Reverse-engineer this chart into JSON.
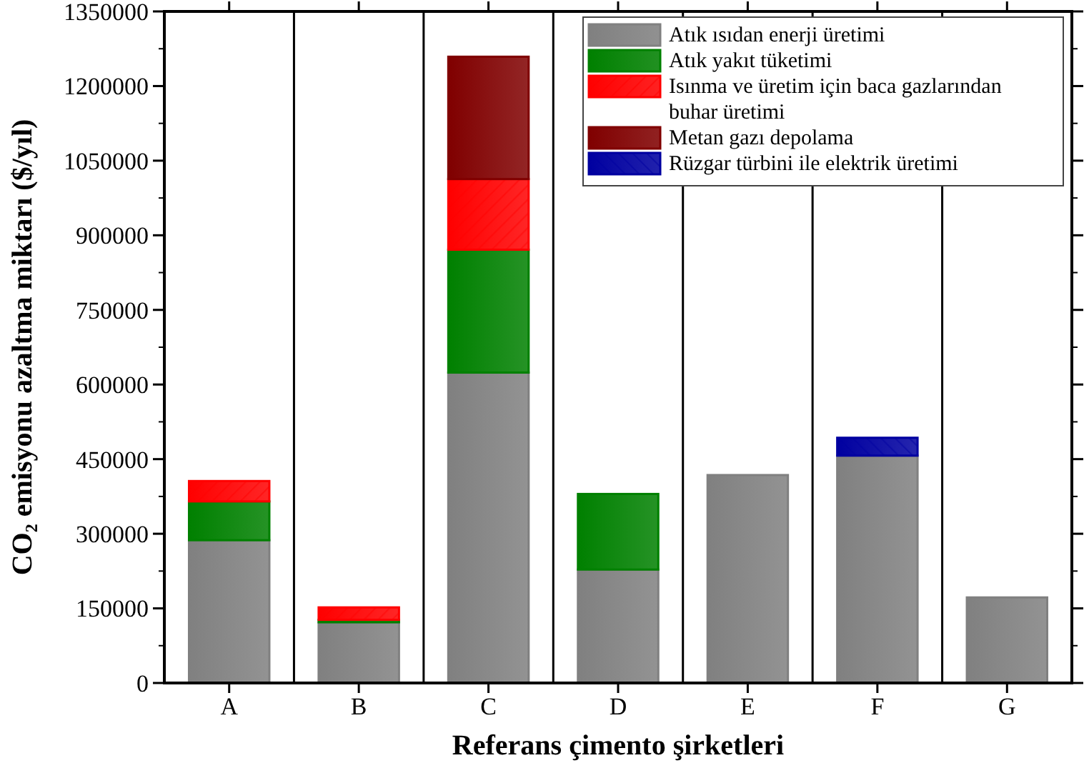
{
  "chart_data": {
    "type": "bar",
    "stacked": true,
    "xlabel": "Referans çimento şirketleri",
    "ylabel": "CO₂ emisyonu azaltma miktarı ($/yıl)",
    "categories": [
      "A",
      "B",
      "C",
      "D",
      "E",
      "F",
      "G"
    ],
    "series": [
      {
        "name": "Atık ısıdan enerji üretimi",
        "color": "#808080",
        "values": [
          287000,
          122000,
          624000,
          228000,
          418000,
          457000,
          172000
        ]
      },
      {
        "name": "Atık yakıt tüketimi",
        "color": "#008000",
        "values": [
          78000,
          5000,
          247000,
          152000,
          null,
          null,
          null
        ]
      },
      {
        "name": "Isınma ve üretim için baca gazlarından buhar üretimi",
        "color": "#ff0000",
        "values": [
          41000,
          25000,
          142000,
          null,
          null,
          null,
          null
        ]
      },
      {
        "name": "Metan gazı depolama",
        "color": "#800000",
        "values": [
          null,
          null,
          246000,
          null,
          null,
          null,
          null
        ]
      },
      {
        "name": "Rüzgar türbini ile elektrik üretimi",
        "color": "#0000a0",
        "values": [
          null,
          null,
          null,
          null,
          null,
          36000,
          null
        ]
      }
    ],
    "ylim": [
      0,
      1350000
    ],
    "yticks": [
      0,
      150000,
      300000,
      450000,
      600000,
      750000,
      900000,
      1050000,
      1200000,
      1350000
    ],
    "legend": "top right"
  }
}
